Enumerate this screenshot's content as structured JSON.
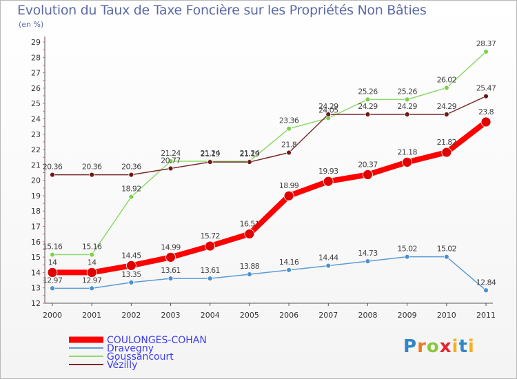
{
  "title": "Evolution du Taux de Taxe Foncière sur les Propriétés Non Bâties",
  "unit": "(en %)",
  "logo": {
    "p": "P",
    "r": "r",
    "o": "o",
    "x": "x",
    "i": "i",
    "t": "t",
    "i2": "i"
  },
  "chart_data": {
    "type": "line",
    "title": "Evolution du Taux de Taxe Foncière sur les Propriétés Non Bâties",
    "ylabel": "(en %)",
    "ylim": [
      12,
      29
    ],
    "grid": false,
    "legend_position": "bottom-left",
    "categories": [
      "2000",
      "2001",
      "2002",
      "2003",
      "2004",
      "2005",
      "2006",
      "2007",
      "2008",
      "2009",
      "2010",
      "2011"
    ],
    "yticks": [
      12,
      13,
      14,
      15,
      16,
      17,
      18,
      19,
      20,
      21,
      22,
      23,
      24,
      25,
      26,
      27,
      28,
      29
    ],
    "series": [
      {
        "name": "COULONGES-COHAN",
        "color": "#ff0000",
        "values": [
          14,
          14,
          14.45,
          14.99,
          15.72,
          16.51,
          18.99,
          19.93,
          20.37,
          21.18,
          21.82,
          23.8
        ],
        "labels": [
          "14",
          "14",
          "14.45",
          "14.99",
          "15.72",
          "16.51",
          "18.99",
          "19.93",
          "20.37",
          "21.18",
          "21.82",
          "23.8"
        ]
      },
      {
        "name": "Dravegny",
        "color": "#5b9bd5",
        "values": [
          12.97,
          12.97,
          13.35,
          13.61,
          13.61,
          13.88,
          14.16,
          14.44,
          14.73,
          15.02,
          15.02,
          12.84
        ],
        "labels": [
          "12.97",
          "12.97",
          "13.35",
          "13.61",
          "13.61",
          "13.88",
          "14.16",
          "14.44",
          "14.73",
          "15.02",
          "15.02",
          "12.84"
        ]
      },
      {
        "name": "Goussancourt",
        "color": "#8fd96b",
        "values": [
          15.16,
          15.16,
          18.92,
          21.24,
          21.24,
          21.24,
          23.36,
          24.05,
          25.26,
          25.26,
          26.02,
          28.37
        ],
        "labels": [
          "15.16",
          "15.16",
          "18.92",
          "21.24",
          "21.24",
          "21.24",
          "23.36",
          "24.05",
          "25.26",
          "25.26",
          "26.02",
          "28.37"
        ]
      },
      {
        "name": "Vézilly",
        "color": "#7a2a2a",
        "values": [
          20.36,
          20.36,
          20.36,
          20.77,
          21.19,
          21.19,
          21.8,
          24.29,
          24.29,
          24.29,
          24.29,
          25.47
        ],
        "labels": [
          "20.36",
          "20.36",
          "20.36",
          "20.77",
          "21.19",
          "21.19",
          "21.8",
          "24.29",
          "24.29",
          "24.29",
          "24.29",
          "25.47"
        ]
      }
    ]
  }
}
